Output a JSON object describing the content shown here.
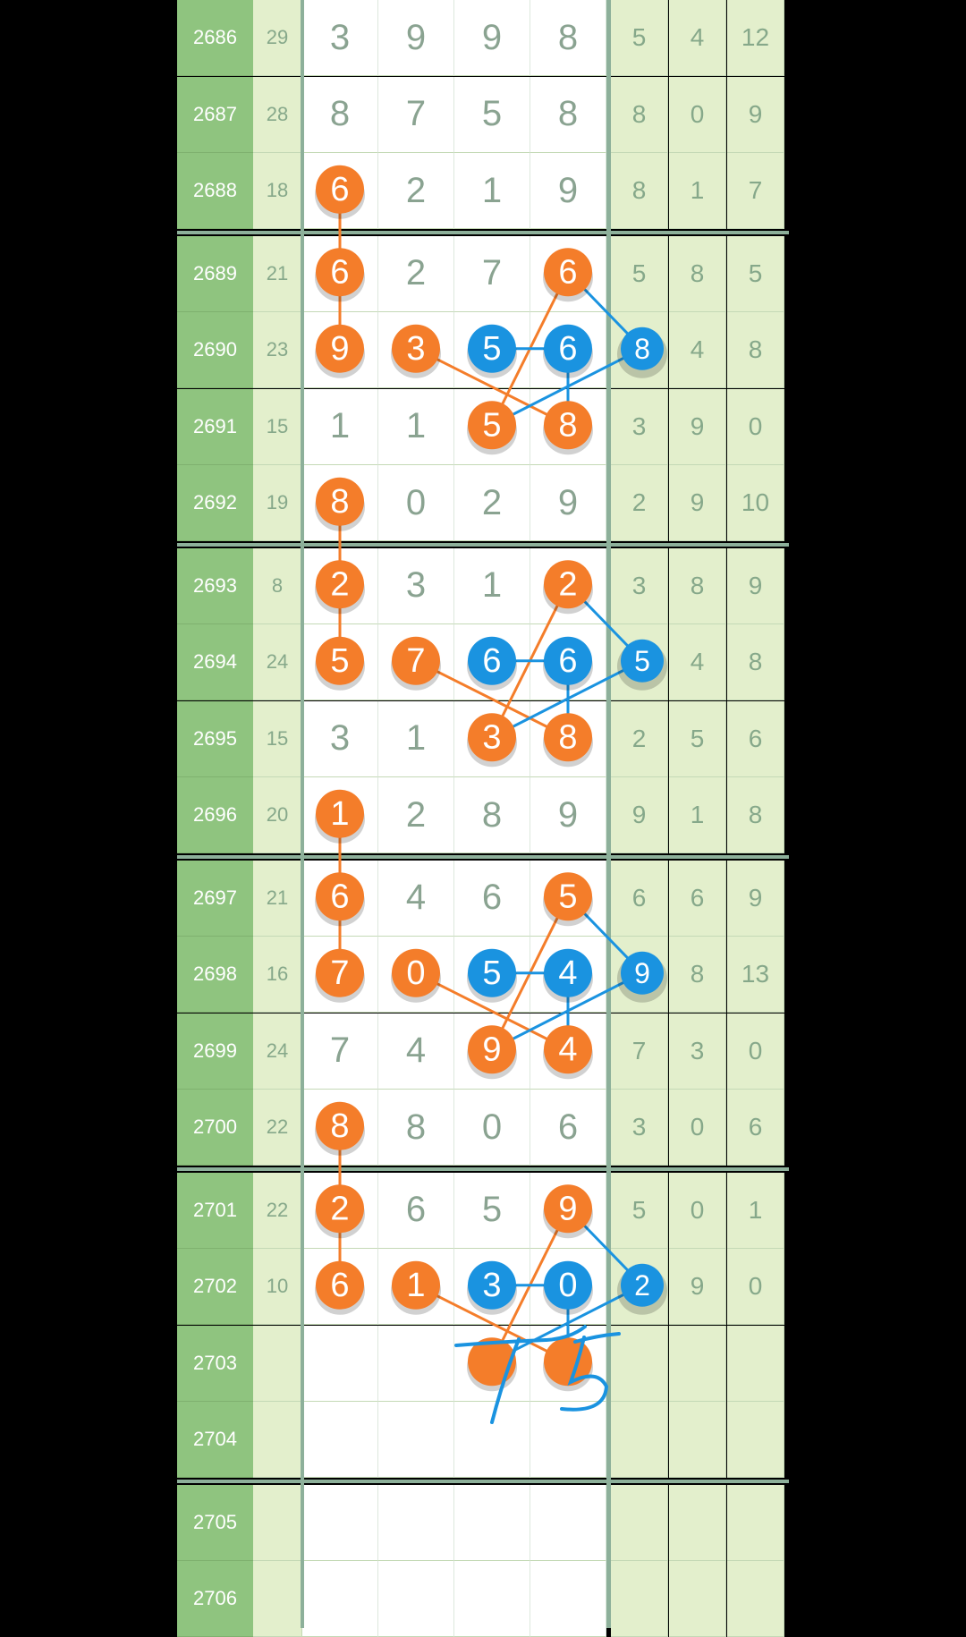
{
  "colors": {
    "orange": "#f47d2a",
    "blue": "#1a93e0",
    "issue_bg": "#8fc47f",
    "side_bg": "#e3efcc",
    "ink": "#8aa391",
    "handwriting": "#1a93e0"
  },
  "columns": [
    "issue",
    "sum",
    "d1",
    "d2",
    "d3",
    "d4",
    "t1",
    "t2",
    "t3"
  ],
  "rows": [
    {
      "issue": "2686",
      "sum": "29",
      "digits": [
        "3",
        "9",
        "9",
        "8"
      ],
      "tail": [
        "5",
        "4",
        "12"
      ]
    },
    {
      "issue": "2687",
      "sum": "28",
      "digits": [
        "8",
        "7",
        "5",
        "8"
      ],
      "tail": [
        "8",
        "0",
        "9"
      ]
    },
    {
      "issue": "2688",
      "sum": "18",
      "digits": [
        "6",
        "2",
        "1",
        "9"
      ],
      "tail": [
        "8",
        "1",
        "7"
      ]
    },
    {
      "issue": "2689",
      "sum": "21",
      "digits": [
        "6",
        "2",
        "7",
        "6"
      ],
      "tail": [
        "5",
        "8",
        "5"
      ]
    },
    {
      "issue": "2690",
      "sum": "23",
      "digits": [
        "9",
        "3",
        "5",
        "6"
      ],
      "tail": [
        "8",
        "4",
        "8"
      ]
    },
    {
      "issue": "2691",
      "sum": "15",
      "digits": [
        "1",
        "1",
        "5",
        "8"
      ],
      "tail": [
        "3",
        "9",
        "0"
      ]
    },
    {
      "issue": "2692",
      "sum": "19",
      "digits": [
        "8",
        "0",
        "2",
        "9"
      ],
      "tail": [
        "2",
        "9",
        "10"
      ]
    },
    {
      "issue": "2693",
      "sum": "8",
      "digits": [
        "2",
        "3",
        "1",
        "2"
      ],
      "tail": [
        "3",
        "8",
        "9"
      ]
    },
    {
      "issue": "2694",
      "sum": "24",
      "digits": [
        "5",
        "7",
        "6",
        "6"
      ],
      "tail": [
        "5",
        "4",
        "8"
      ]
    },
    {
      "issue": "2695",
      "sum": "15",
      "digits": [
        "3",
        "1",
        "3",
        "8"
      ],
      "tail": [
        "2",
        "5",
        "6"
      ]
    },
    {
      "issue": "2696",
      "sum": "20",
      "digits": [
        "1",
        "2",
        "8",
        "9"
      ],
      "tail": [
        "9",
        "1",
        "8"
      ]
    },
    {
      "issue": "2697",
      "sum": "21",
      "digits": [
        "6",
        "4",
        "6",
        "5"
      ],
      "tail": [
        "6",
        "6",
        "9"
      ]
    },
    {
      "issue": "2698",
      "sum": "16",
      "digits": [
        "7",
        "0",
        "5",
        "4"
      ],
      "tail": [
        "9",
        "8",
        "13"
      ]
    },
    {
      "issue": "2699",
      "sum": "24",
      "digits": [
        "7",
        "4",
        "9",
        "4"
      ],
      "tail": [
        "7",
        "3",
        "0"
      ]
    },
    {
      "issue": "2700",
      "sum": "22",
      "digits": [
        "8",
        "8",
        "0",
        "6"
      ],
      "tail": [
        "3",
        "0",
        "6"
      ]
    },
    {
      "issue": "2701",
      "sum": "22",
      "digits": [
        "2",
        "6",
        "5",
        "9"
      ],
      "tail": [
        "5",
        "0",
        "1"
      ]
    },
    {
      "issue": "2702",
      "sum": "10",
      "digits": [
        "6",
        "1",
        "3",
        "0"
      ],
      "tail": [
        "2",
        "9",
        "0"
      ]
    },
    {
      "issue": "2703",
      "sum": "",
      "digits": [
        "",
        "",
        "",
        ""
      ],
      "tail": [
        "",
        "",
        ""
      ]
    },
    {
      "issue": "2704",
      "sum": "",
      "digits": [
        "",
        "",
        "",
        ""
      ],
      "tail": [
        "",
        "",
        ""
      ]
    },
    {
      "issue": "2705",
      "sum": "",
      "digits": [
        "",
        "",
        "",
        ""
      ],
      "tail": [
        "",
        "",
        ""
      ]
    },
    {
      "issue": "2706",
      "sum": "",
      "digits": [
        "",
        "",
        "",
        ""
      ],
      "tail": [
        "",
        "",
        ""
      ]
    }
  ],
  "balls": [
    {
      "row": 2,
      "col": 0,
      "color": "orange",
      "text": "6"
    },
    {
      "row": 3,
      "col": 0,
      "color": "orange",
      "text": "6"
    },
    {
      "row": 3,
      "col": 3,
      "color": "orange",
      "text": "6"
    },
    {
      "row": 4,
      "col": 0,
      "color": "orange",
      "text": "9"
    },
    {
      "row": 4,
      "col": 1,
      "color": "orange",
      "text": "3"
    },
    {
      "row": 4,
      "col": 2,
      "color": "blue",
      "text": "5"
    },
    {
      "row": 4,
      "col": 3,
      "color": "blue",
      "text": "6"
    },
    {
      "row": 4,
      "col": 4,
      "color": "blue",
      "text": "8"
    },
    {
      "row": 5,
      "col": 2,
      "color": "orange",
      "text": "5"
    },
    {
      "row": 5,
      "col": 3,
      "color": "orange",
      "text": "8"
    },
    {
      "row": 6,
      "col": 0,
      "color": "orange",
      "text": "8"
    },
    {
      "row": 7,
      "col": 0,
      "color": "orange",
      "text": "2"
    },
    {
      "row": 7,
      "col": 3,
      "color": "orange",
      "text": "2"
    },
    {
      "row": 8,
      "col": 0,
      "color": "orange",
      "text": "5"
    },
    {
      "row": 8,
      "col": 1,
      "color": "orange",
      "text": "7"
    },
    {
      "row": 8,
      "col": 2,
      "color": "blue",
      "text": "6"
    },
    {
      "row": 8,
      "col": 3,
      "color": "blue",
      "text": "6"
    },
    {
      "row": 8,
      "col": 4,
      "color": "blue",
      "text": "5"
    },
    {
      "row": 9,
      "col": 2,
      "color": "orange",
      "text": "3"
    },
    {
      "row": 9,
      "col": 3,
      "color": "orange",
      "text": "8"
    },
    {
      "row": 10,
      "col": 0,
      "color": "orange",
      "text": "1"
    },
    {
      "row": 11,
      "col": 0,
      "color": "orange",
      "text": "6"
    },
    {
      "row": 11,
      "col": 3,
      "color": "orange",
      "text": "5"
    },
    {
      "row": 12,
      "col": 0,
      "color": "orange",
      "text": "7"
    },
    {
      "row": 12,
      "col": 1,
      "color": "orange",
      "text": "0"
    },
    {
      "row": 12,
      "col": 2,
      "color": "blue",
      "text": "5"
    },
    {
      "row": 12,
      "col": 3,
      "color": "blue",
      "text": "4"
    },
    {
      "row": 12,
      "col": 4,
      "color": "blue",
      "text": "9"
    },
    {
      "row": 13,
      "col": 2,
      "color": "orange",
      "text": "9"
    },
    {
      "row": 13,
      "col": 3,
      "color": "orange",
      "text": "4"
    },
    {
      "row": 14,
      "col": 0,
      "color": "orange",
      "text": "8"
    },
    {
      "row": 15,
      "col": 0,
      "color": "orange",
      "text": "2"
    },
    {
      "row": 15,
      "col": 3,
      "color": "orange",
      "text": "9"
    },
    {
      "row": 16,
      "col": 0,
      "color": "orange",
      "text": "6"
    },
    {
      "row": 16,
      "col": 1,
      "color": "orange",
      "text": "1"
    },
    {
      "row": 16,
      "col": 2,
      "color": "blue",
      "text": "3"
    },
    {
      "row": 16,
      "col": 3,
      "color": "blue",
      "text": "0"
    },
    {
      "row": 16,
      "col": 4,
      "color": "blue",
      "text": "2"
    },
    {
      "row": 17,
      "col": 2,
      "color": "orange",
      "text": ""
    },
    {
      "row": 17,
      "col": 3,
      "color": "orange",
      "text": ""
    }
  ],
  "links": [
    {
      "color": "orange",
      "pts": [
        [
          2,
          0
        ],
        [
          3,
          0
        ],
        [
          4,
          0
        ]
      ]
    },
    {
      "color": "orange",
      "pts": [
        [
          3,
          3
        ],
        [
          5,
          2
        ]
      ]
    },
    {
      "color": "orange",
      "pts": [
        [
          4,
          1
        ],
        [
          5,
          3
        ]
      ]
    },
    {
      "color": "blue",
      "pts": [
        [
          3,
          3
        ],
        [
          4,
          4
        ],
        [
          5,
          2
        ]
      ]
    },
    {
      "color": "blue",
      "pts": [
        [
          4,
          2
        ],
        [
          4,
          3
        ],
        [
          5,
          3
        ]
      ]
    },
    {
      "color": "orange",
      "pts": [
        [
          6,
          0
        ],
        [
          7,
          0
        ],
        [
          8,
          0
        ]
      ]
    },
    {
      "color": "orange",
      "pts": [
        [
          7,
          3
        ],
        [
          9,
          2
        ]
      ]
    },
    {
      "color": "orange",
      "pts": [
        [
          8,
          1
        ],
        [
          9,
          3
        ]
      ]
    },
    {
      "color": "blue",
      "pts": [
        [
          7,
          3
        ],
        [
          8,
          4
        ],
        [
          9,
          2
        ]
      ]
    },
    {
      "color": "blue",
      "pts": [
        [
          8,
          2
        ],
        [
          8,
          3
        ],
        [
          9,
          3
        ]
      ]
    },
    {
      "color": "orange",
      "pts": [
        [
          10,
          0
        ],
        [
          11,
          0
        ],
        [
          12,
          0
        ]
      ]
    },
    {
      "color": "orange",
      "pts": [
        [
          11,
          3
        ],
        [
          13,
          2
        ]
      ]
    },
    {
      "color": "orange",
      "pts": [
        [
          12,
          1
        ],
        [
          13,
          3
        ]
      ]
    },
    {
      "color": "blue",
      "pts": [
        [
          11,
          3
        ],
        [
          12,
          4
        ],
        [
          13,
          2
        ]
      ]
    },
    {
      "color": "blue",
      "pts": [
        [
          12,
          2
        ],
        [
          12,
          3
        ],
        [
          13,
          3
        ]
      ]
    },
    {
      "color": "orange",
      "pts": [
        [
          14,
          0
        ],
        [
          15,
          0
        ],
        [
          16,
          0
        ]
      ]
    },
    {
      "color": "orange",
      "pts": [
        [
          15,
          3
        ],
        [
          17,
          2
        ]
      ]
    },
    {
      "color": "orange",
      "pts": [
        [
          16,
          1
        ],
        [
          17,
          3
        ]
      ]
    },
    {
      "color": "blue",
      "pts": [
        [
          15,
          3
        ],
        [
          16,
          4
        ],
        [
          17,
          2
        ]
      ]
    },
    {
      "color": "blue",
      "pts": [
        [
          16,
          2
        ],
        [
          16,
          3
        ],
        [
          17,
          3
        ]
      ]
    }
  ],
  "handwriting": {
    "strokes_label": "hand-drawn 7 and 5 marks"
  }
}
